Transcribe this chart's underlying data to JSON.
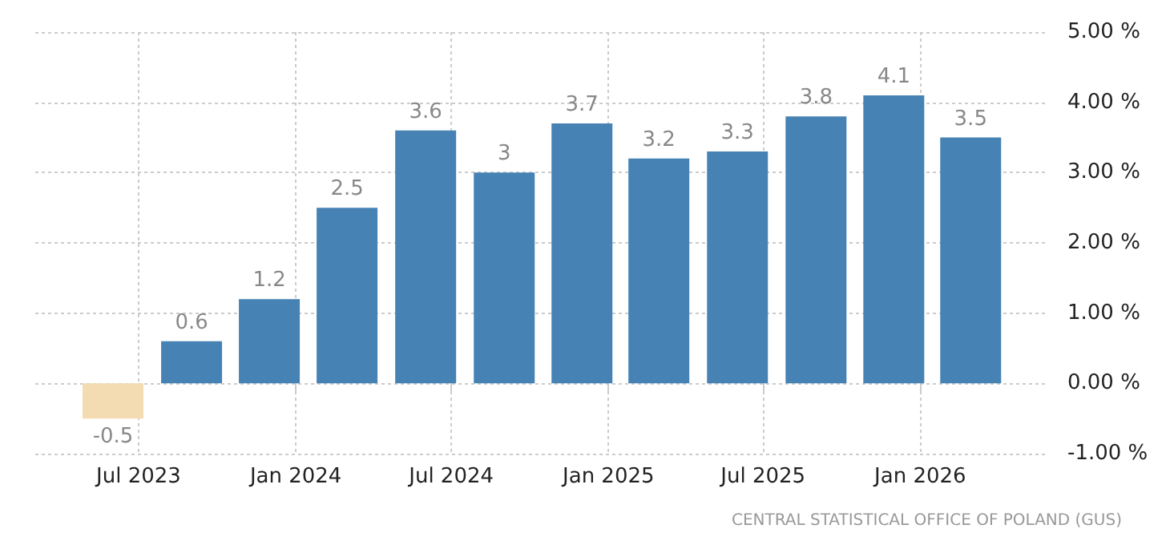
{
  "chart_data": {
    "type": "bar",
    "x": [
      "2023-06",
      "2023-09",
      "2023-12",
      "2024-03",
      "2024-06",
      "2024-09",
      "2024-12",
      "2025-03",
      "2025-06",
      "2025-09",
      "2025-12",
      "2026-03"
    ],
    "values": [
      -0.5,
      0.6,
      1.2,
      2.5,
      3.6,
      3,
      3.7,
      3.2,
      3.3,
      3.8,
      4.1,
      3.5
    ],
    "colors": [
      "#f3dcb2",
      "#4682b4",
      "#4682b4",
      "#4682b4",
      "#4682b4",
      "#4682b4",
      "#4682b4",
      "#4682b4",
      "#4682b4",
      "#4682b4",
      "#4682b4",
      "#4682b4"
    ],
    "data_labels": true,
    "xlim": [
      "2023-03-02",
      "2026-05-27"
    ],
    "xticks": [
      {
        "value": "2023-07",
        "label": "Jul 2023"
      },
      {
        "value": "2024-01",
        "label": "Jan 2024"
      },
      {
        "value": "2024-07",
        "label": "Jul 2024"
      },
      {
        "value": "2025-01",
        "label": "Jan 2025"
      },
      {
        "value": "2025-07",
        "label": "Jul 2025"
      },
      {
        "value": "2026-01",
        "label": "Jan 2026"
      }
    ],
    "ylim": [
      -1,
      5
    ],
    "yticks": [
      {
        "value": -1,
        "label": "-1.00 %"
      },
      {
        "value": 0,
        "label": "0.00 %"
      },
      {
        "value": 1,
        "label": "1.00 %"
      },
      {
        "value": 2,
        "label": "2.00 %"
      },
      {
        "value": 3,
        "label": "3.00 %"
      },
      {
        "value": 4,
        "label": "4.00 %"
      },
      {
        "value": 5,
        "label": "5.00 %"
      }
    ],
    "grid": true,
    "annotations": [
      "CENTRAL STATISTICAL OFFICE OF POLAND (GUS)"
    ]
  }
}
